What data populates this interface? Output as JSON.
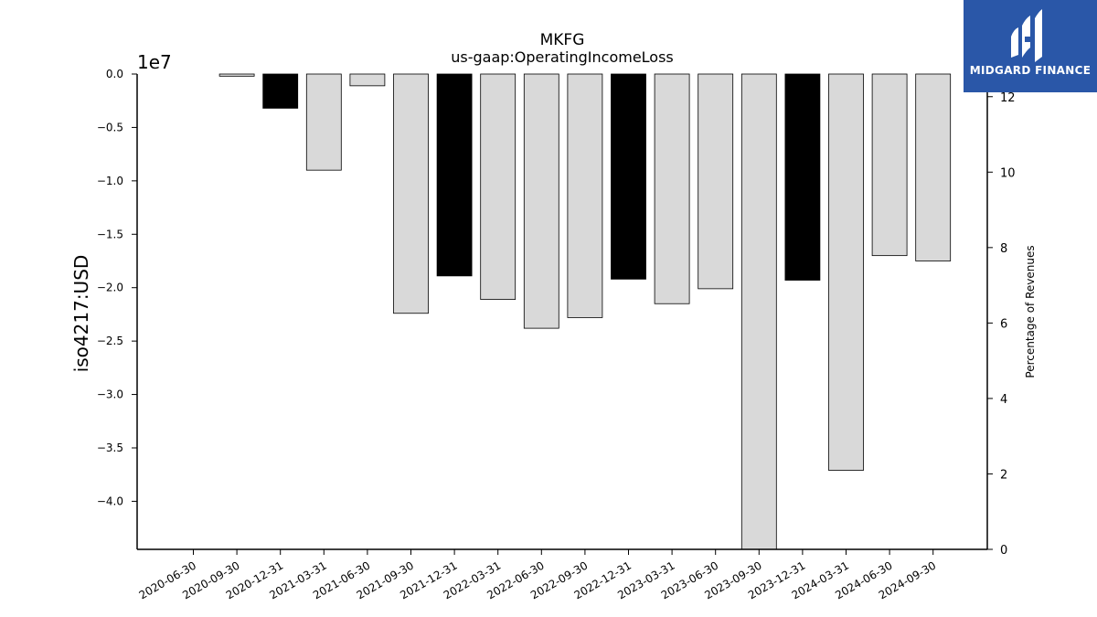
{
  "logo": {
    "text": "MIDGARD FINANCE",
    "color": "#2a57a8"
  },
  "chart_data": {
    "type": "bar",
    "title": "MKFG",
    "subtitle": "us-gaap:OperatingIncomeLoss",
    "ylabel": "iso4217:USD",
    "y_offset_label": "1e7",
    "y2label": "Percentage of Revenues",
    "ylim": [
      -4.45,
      0
    ],
    "y2lim": [
      0,
      12.6
    ],
    "yticks": [
      "0.0",
      "−0.5",
      "−1.0",
      "−1.5",
      "−2.0",
      "−2.5",
      "−3.0",
      "−3.5",
      "−4.0"
    ],
    "y2ticks": [
      "0",
      "2",
      "4",
      "6",
      "8",
      "10",
      "12"
    ],
    "categories": [
      "2020-06-30",
      "2020-09-30",
      "2020-12-31",
      "2021-03-31",
      "2021-06-30",
      "2021-09-30",
      "2021-12-31",
      "2022-03-31",
      "2022-06-30",
      "2022-09-30",
      "2022-12-31",
      "2023-03-31",
      "2023-06-30",
      "2023-09-30",
      "2023-12-31",
      "2024-03-31",
      "2024-06-30",
      "2024-09-30"
    ],
    "values": [
      0.0,
      -0.02,
      -0.32,
      -0.9,
      -0.11,
      -2.24,
      -1.89,
      -2.11,
      -2.38,
      -2.28,
      -1.92,
      -2.15,
      -2.01,
      -4.45,
      -1.93,
      -3.71,
      -1.7,
      -1.75
    ],
    "highlight": [
      false,
      false,
      true,
      false,
      false,
      false,
      true,
      false,
      false,
      false,
      true,
      false,
      false,
      false,
      true,
      false,
      false,
      false
    ],
    "colors": {
      "bar": "#d9d9d9",
      "highlight": "#000000",
      "edge": "#000000"
    },
    "grid": false,
    "legend": "none"
  }
}
